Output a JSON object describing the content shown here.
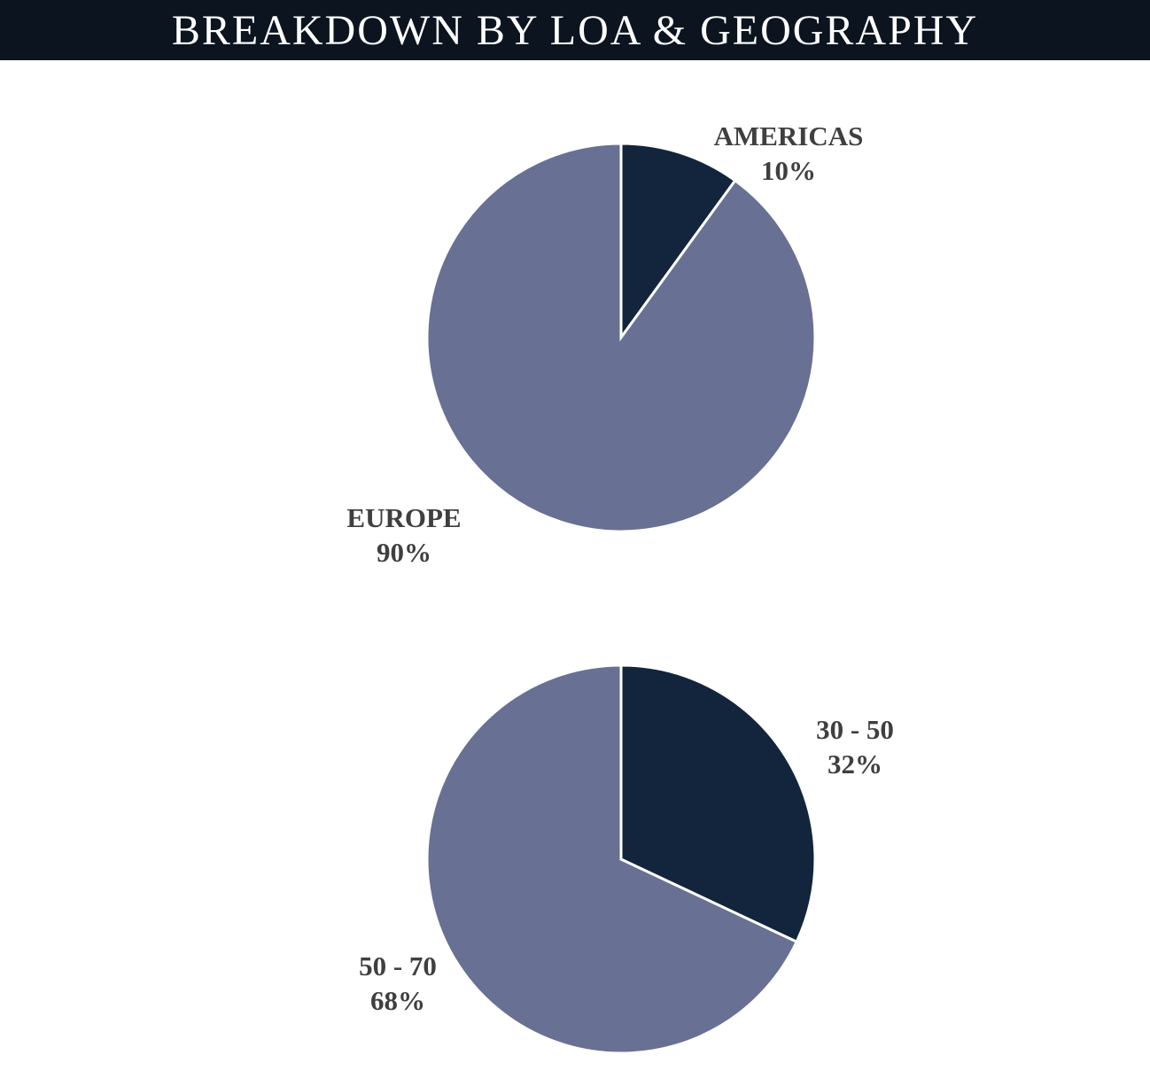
{
  "header": {
    "title": "BREAKDOWN BY LOA & GEOGRAPHY"
  },
  "colors": {
    "header_background": "#0b141f",
    "dark_slice": "#13253d",
    "light_slice": "#687093",
    "label_text": "#3f3f3f"
  },
  "chart_data": [
    {
      "type": "pie",
      "title": "",
      "slices": [
        {
          "name": "AMERICAS",
          "value": 10,
          "percent_label": "10%",
          "color": "#13253d"
        },
        {
          "name": "EUROPE",
          "value": 90,
          "percent_label": "90%",
          "color": "#687093"
        }
      ],
      "start_angle": "12 o'clock",
      "direction": "clockwise",
      "legend": "none (labels beside slices)"
    },
    {
      "type": "pie",
      "title": "",
      "slices": [
        {
          "name": "30 - 50",
          "value": 32,
          "percent_label": "32%",
          "color": "#13253d"
        },
        {
          "name": "50 - 70",
          "value": 68,
          "percent_label": "68%",
          "color": "#687093"
        }
      ],
      "start_angle": "12 o'clock",
      "direction": "clockwise",
      "legend": "none (labels beside slices)"
    }
  ]
}
